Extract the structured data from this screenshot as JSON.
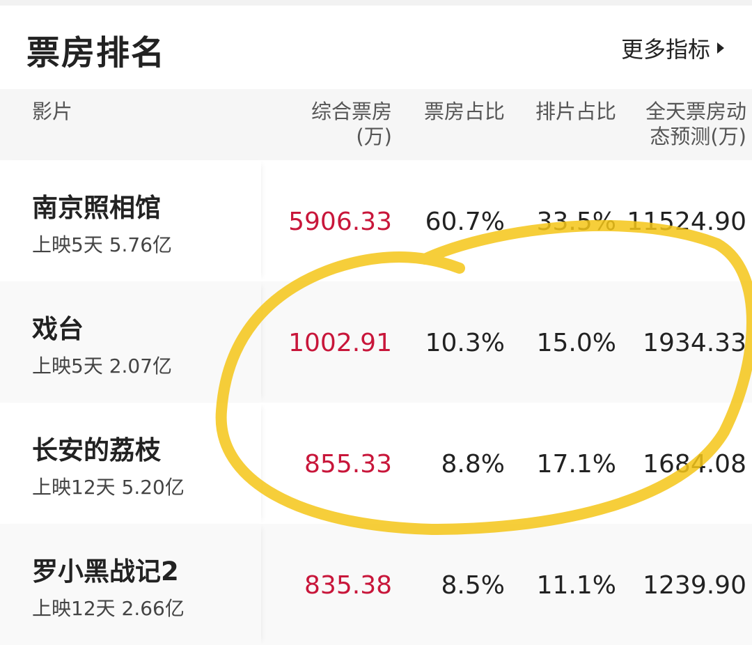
{
  "header": {
    "title": "票房排名",
    "more_label": "更多指标"
  },
  "columns": {
    "film": "影片",
    "box_office": [
      "综合票房",
      "(万)"
    ],
    "box_share": "票房占比",
    "screening_share": "排片占比",
    "forecast": [
      "全天票房动",
      "态预测(万)"
    ]
  },
  "rows": [
    {
      "name": "南京照相馆",
      "sub": "上映5天  5.76亿",
      "box_office": "5906.33",
      "box_share": "60.7%",
      "screening_share": "33.5%",
      "forecast": "11524.90"
    },
    {
      "name": "戏台",
      "sub": "上映5天  2.07亿",
      "box_office": "1002.91",
      "box_share": "10.3%",
      "screening_share": "15.0%",
      "forecast": "1934.33"
    },
    {
      "name": "长安的荔枝",
      "sub": "上映12天  5.20亿",
      "box_office": "855.33",
      "box_share": "8.8%",
      "screening_share": "17.1%",
      "forecast": "1684.08"
    },
    {
      "name": "罗小黑战记2",
      "sub": "上映12天  2.66亿",
      "box_office": "835.38",
      "box_share": "8.5%",
      "screening_share": "11.1%",
      "forecast": "1239.90"
    }
  ],
  "colors": {
    "accent_red": "#c8163a",
    "highlight_marker": "#f5c518"
  }
}
